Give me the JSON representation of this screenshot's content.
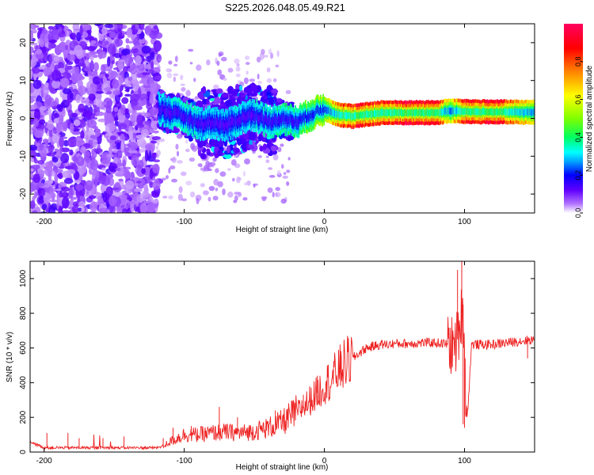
{
  "title": "S225.2026.048.05.49.R21",
  "chart_data": [
    {
      "type": "heatmap",
      "name": "spectrogram",
      "xlabel": "Height of straight line (km)",
      "ylabel": "Frequency (Hz)",
      "xlim": [
        -210,
        150
      ],
      "ylim": [
        -25,
        25
      ],
      "xticks": [
        -200,
        -100,
        0,
        100
      ],
      "yticks": [
        -20,
        -10,
        0,
        10,
        20
      ],
      "colorbar": {
        "label": "Normalized spectral amplitude",
        "range": [
          0,
          1
        ],
        "ticks": [
          "0.0",
          "0.2",
          "0.4",
          "0.6",
          "0.8"
        ],
        "tick_values": [
          0.0,
          0.2,
          0.4,
          0.6,
          0.8
        ],
        "colors": [
          "#ffffff",
          "#b070ff",
          "#6000ff",
          "#0000ff",
          "#00a0ff",
          "#00ffff",
          "#00ff60",
          "#80ff00",
          "#ffff00",
          "#ff8000",
          "#ff0000",
          "#ff0060"
        ],
        "color_stops": [
          0.0,
          0.05,
          0.12,
          0.2,
          0.27,
          0.32,
          0.4,
          0.5,
          0.62,
          0.75,
          0.87,
          1.0
        ]
      },
      "ridge_centerline": [
        [
          -118,
          2.5
        ],
        [
          -110,
          1.5
        ],
        [
          -100,
          0.5
        ],
        [
          -90,
          -1.5
        ],
        [
          -80,
          -1
        ],
        [
          -70,
          -2
        ],
        [
          -60,
          0
        ],
        [
          -50,
          1
        ],
        [
          -40,
          -1
        ],
        [
          -30,
          0
        ],
        [
          -20,
          -1
        ],
        [
          -10,
          1
        ],
        [
          0,
          2.5
        ],
        [
          10,
          1
        ],
        [
          20,
          0.5
        ],
        [
          40,
          1.5
        ],
        [
          60,
          1.5
        ],
        [
          80,
          1.5
        ],
        [
          90,
          2
        ],
        [
          100,
          1.8
        ],
        [
          120,
          1.7
        ],
        [
          150,
          1.6
        ]
      ],
      "ridge_amplitude": [
        [
          -118,
          0.3
        ],
        [
          -100,
          0.35
        ],
        [
          -80,
          0.3
        ],
        [
          -60,
          0.32
        ],
        [
          -40,
          0.35
        ],
        [
          -20,
          0.4
        ],
        [
          0,
          0.55
        ],
        [
          10,
          0.8
        ],
        [
          20,
          0.9
        ],
        [
          40,
          0.85
        ],
        [
          60,
          0.95
        ],
        [
          80,
          0.95
        ],
        [
          90,
          0.6
        ],
        [
          100,
          0.9
        ],
        [
          120,
          0.98
        ],
        [
          150,
          0.6
        ]
      ],
      "noise_region_x": [
        -210,
        -118
      ],
      "scatter_region_x": [
        -118,
        -30
      ]
    },
    {
      "type": "line",
      "name": "snr",
      "xlabel": "Height of straight line (km)",
      "ylabel": "SNR (10 * v/v)",
      "xlim": [
        -210,
        150
      ],
      "ylim": [
        0,
        1100
      ],
      "xticks": [
        -200,
        -100,
        0,
        100
      ],
      "yticks": [
        0,
        200,
        400,
        600,
        800,
        1000
      ],
      "color": "#ee2222",
      "series": [
        {
          "name": "SNR",
          "x": [
            -210,
            -200,
            -190,
            -180,
            -170,
            -160,
            -150,
            -140,
            -130,
            -120,
            -115,
            -110,
            -105,
            -100,
            -90,
            -80,
            -70,
            -60,
            -50,
            -40,
            -30,
            -25,
            -20,
            -15,
            -10,
            -5,
            0,
            5,
            10,
            15,
            20,
            25,
            30,
            35,
            40,
            45,
            50,
            60,
            70,
            80,
            85,
            90,
            92,
            95,
            97,
            99,
            100,
            101,
            102,
            105,
            110,
            120,
            130,
            140,
            150
          ],
          "values": [
            60,
            25,
            25,
            25,
            25,
            25,
            25,
            25,
            25,
            25,
            35,
            60,
            80,
            100,
            100,
            110,
            115,
            110,
            120,
            140,
            170,
            200,
            230,
            260,
            300,
            340,
            390,
            420,
            470,
            510,
            540,
            570,
            600,
            610,
            620,
            620,
            625,
            625,
            630,
            630,
            625,
            620,
            600,
            650,
            750,
            850,
            600,
            300,
            200,
            620,
            620,
            620,
            630,
            640,
            650
          ],
          "spikes": [
            [
              -198,
              110
            ],
            [
              -183,
              110
            ],
            [
              -175,
              80
            ],
            [
              -158,
              80
            ],
            [
              -143,
              90
            ],
            [
              -115,
              80
            ],
            [
              -108,
              140
            ],
            [
              -95,
              150
            ],
            [
              -75,
              260
            ],
            [
              -62,
              200
            ],
            [
              -35,
              240
            ],
            [
              -15,
              330
            ],
            [
              -5,
              440
            ],
            [
              12,
              560
            ],
            [
              15,
              510
            ],
            [
              95,
              1050
            ],
            [
              98,
              1100
            ],
            [
              99,
              160
            ],
            [
              100,
              140
            ],
            [
              145,
              540
            ]
          ]
        }
      ]
    }
  ]
}
